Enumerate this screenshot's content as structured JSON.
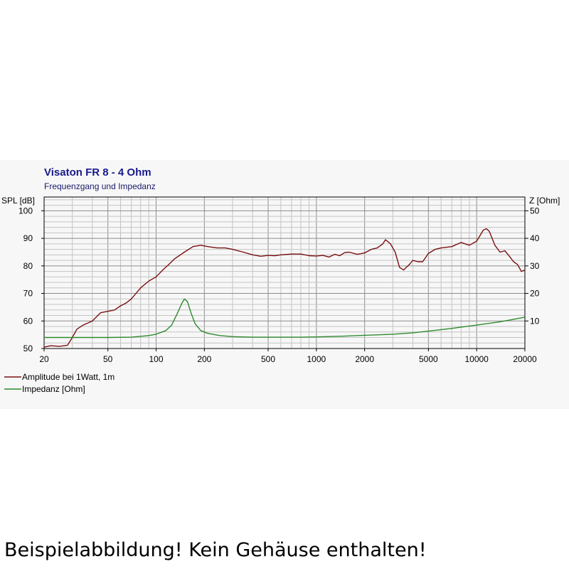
{
  "chart_data": {
    "type": "line",
    "title": "Visaton FR 8 - 4 Ohm",
    "subtitle": "Frequenzgang und Impedanz",
    "y_left_label": "SPL [dB]",
    "y_right_label": "Z [Ohm]",
    "x_scale": "log",
    "xlim": [
      20,
      20000
    ],
    "ylim_left": [
      50,
      105
    ],
    "ylim_right": [
      0,
      55
    ],
    "x_ticks": [
      20,
      50,
      100,
      200,
      500,
      1000,
      2000,
      5000,
      10000,
      20000
    ],
    "x_tick_labels": [
      "20",
      "50",
      "100",
      "200",
      "500",
      "1000",
      "2000",
      "5000",
      "10000",
      "20000"
    ],
    "y_left_ticks": [
      50,
      60,
      70,
      80,
      90,
      100
    ],
    "y_left_tick_labels": [
      "50",
      "60",
      "70",
      "80",
      "90",
      "100"
    ],
    "y_right_ticks": [
      10,
      20,
      30,
      40,
      50
    ],
    "y_right_tick_labels": [
      "10",
      "20",
      "30",
      "40",
      "50"
    ],
    "grid": true,
    "legend_position": "bottom-left",
    "series": [
      {
        "name": "Amplitude bei 1Watt, 1m",
        "axis": "left",
        "color": "#7a1010",
        "points": [
          [
            20,
            50.5
          ],
          [
            22,
            51
          ],
          [
            25,
            50.8
          ],
          [
            28,
            51.2
          ],
          [
            30,
            54
          ],
          [
            32,
            57
          ],
          [
            35,
            58.5
          ],
          [
            40,
            60
          ],
          [
            45,
            63
          ],
          [
            50,
            63.5
          ],
          [
            55,
            64
          ],
          [
            60,
            65.5
          ],
          [
            65,
            66.5
          ],
          [
            70,
            68
          ],
          [
            80,
            72
          ],
          [
            90,
            74.5
          ],
          [
            100,
            76
          ],
          [
            110,
            78.5
          ],
          [
            120,
            80.5
          ],
          [
            130,
            82.5
          ],
          [
            150,
            85
          ],
          [
            170,
            87
          ],
          [
            190,
            87.5
          ],
          [
            210,
            87
          ],
          [
            240,
            86.5
          ],
          [
            270,
            86.5
          ],
          [
            300,
            86
          ],
          [
            350,
            85
          ],
          [
            400,
            84
          ],
          [
            450,
            83.5
          ],
          [
            500,
            83.8
          ],
          [
            550,
            83.7
          ],
          [
            600,
            84
          ],
          [
            700,
            84.3
          ],
          [
            800,
            84.3
          ],
          [
            900,
            83.7
          ],
          [
            1000,
            83.6
          ],
          [
            1100,
            83.8
          ],
          [
            1200,
            83.2
          ],
          [
            1300,
            84.2
          ],
          [
            1400,
            83.7
          ],
          [
            1500,
            84.8
          ],
          [
            1600,
            85
          ],
          [
            1800,
            84.2
          ],
          [
            2000,
            84.7
          ],
          [
            2200,
            86
          ],
          [
            2400,
            86.5
          ],
          [
            2600,
            88
          ],
          [
            2700,
            89.5
          ],
          [
            2900,
            88
          ],
          [
            3100,
            85
          ],
          [
            3300,
            79.5
          ],
          [
            3500,
            78.5
          ],
          [
            3800,
            80.5
          ],
          [
            4000,
            82
          ],
          [
            4300,
            81.5
          ],
          [
            4600,
            81.5
          ],
          [
            5000,
            84.5
          ],
          [
            5500,
            86
          ],
          [
            6000,
            86.5
          ],
          [
            7000,
            87
          ],
          [
            8000,
            88.5
          ],
          [
            9000,
            87.5
          ],
          [
            10000,
            89
          ],
          [
            11000,
            93
          ],
          [
            11500,
            93.5
          ],
          [
            12000,
            92.5
          ],
          [
            13000,
            87.5
          ],
          [
            14000,
            85
          ],
          [
            15000,
            85.5
          ],
          [
            16000,
            83.5
          ],
          [
            17000,
            81.5
          ],
          [
            18000,
            80.5
          ],
          [
            19000,
            78
          ],
          [
            20000,
            78.5
          ]
        ]
      },
      {
        "name": "Impedanz [Ohm]",
        "axis": "right",
        "color": "#2e8a2e",
        "points": [
          [
            20,
            4
          ],
          [
            50,
            4
          ],
          [
            70,
            4.1
          ],
          [
            90,
            4.7
          ],
          [
            100,
            5.2
          ],
          [
            115,
            6.5
          ],
          [
            125,
            8.5
          ],
          [
            135,
            12.5
          ],
          [
            145,
            16.5
          ],
          [
            150,
            18
          ],
          [
            157,
            17
          ],
          [
            165,
            13
          ],
          [
            175,
            9
          ],
          [
            190,
            6.5
          ],
          [
            210,
            5.5
          ],
          [
            250,
            4.7
          ],
          [
            300,
            4.3
          ],
          [
            400,
            4.1
          ],
          [
            600,
            4.1
          ],
          [
            800,
            4.1
          ],
          [
            1000,
            4.2
          ],
          [
            1500,
            4.5
          ],
          [
            2000,
            4.8
          ],
          [
            3000,
            5.2
          ],
          [
            4000,
            5.7
          ],
          [
            5000,
            6.3
          ],
          [
            7000,
            7.3
          ],
          [
            10000,
            8.5
          ],
          [
            14000,
            9.7
          ],
          [
            17000,
            10.6
          ],
          [
            20000,
            11.4
          ]
        ]
      }
    ]
  },
  "caption": "Beispielabbildung! Kein Gehäuse enthalten!"
}
